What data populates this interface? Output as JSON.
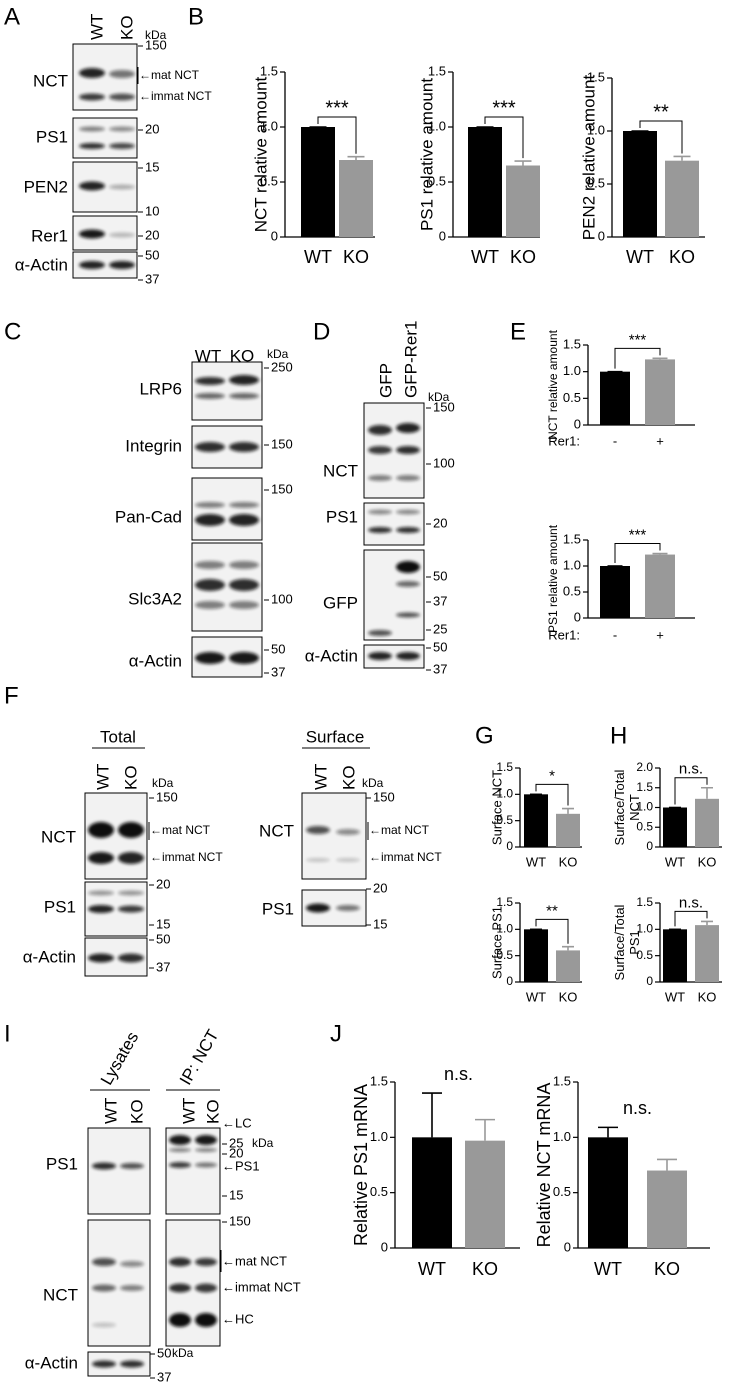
{
  "panel_A": {
    "label": "A",
    "lanes": [
      "WT",
      "KO"
    ],
    "unit": "kDa",
    "rows": [
      "NCT",
      "PS1",
      "PEN2",
      "Rer1",
      "α-Actin"
    ],
    "markers": [
      150,
      20,
      15,
      10,
      20,
      50,
      37
    ],
    "annotations": [
      "←mat NCT",
      "←immat NCT"
    ]
  },
  "panel_B": {
    "label": "B",
    "charts": [
      {
        "type": "bar",
        "ylabel": "NCT relative amount",
        "categories": [
          "WT",
          "KO"
        ],
        "values": [
          1,
          0.7
        ],
        "errors": [
          0,
          0.03
        ],
        "colors": [
          "#000000",
          "#999999"
        ],
        "ylim": [
          0,
          1.5
        ],
        "yticks": [
          0,
          0.5,
          {
            "value": 1,
            "label": "1.0"
          },
          1.5
        ],
        "significance": "***"
      },
      {
        "type": "bar",
        "ylabel": "PS1 relative amount",
        "categories": [
          "WT",
          "KO"
        ],
        "values": [
          1,
          0.65
        ],
        "errors": [
          0,
          0.04
        ],
        "colors": [
          "#000000",
          "#999999"
        ],
        "ylim": [
          0,
          1.5
        ],
        "yticks": [
          0,
          0.5,
          {
            "value": 1,
            "label": "1.0"
          },
          1.5
        ],
        "significance": "***"
      },
      {
        "type": "bar",
        "ylabel": "PEN2 relative amount",
        "categories": [
          "WT",
          "KO"
        ],
        "values": [
          1,
          0.72
        ],
        "errors": [
          0,
          0.04
        ],
        "colors": [
          "#000000",
          "#999999"
        ],
        "ylim": [
          0,
          1.5
        ],
        "yticks": [
          0,
          0.5,
          {
            "value": 1,
            "label": "1.0"
          },
          1.5
        ],
        "significance": "**"
      }
    ]
  },
  "panel_C": {
    "label": "C",
    "lanes": [
      "WT",
      "KO"
    ],
    "unit": "kDa",
    "rows": [
      "LRP6",
      "Integrin",
      "Pan-Cad",
      "Slc3A2",
      "α-Actin"
    ],
    "markers": [
      250,
      150,
      150,
      100,
      50,
      37
    ]
  },
  "panel_D": {
    "label": "D",
    "lanes": [
      "GFP",
      "GFP-Rer1"
    ],
    "unit": "kDa",
    "rows": [
      "NCT",
      "PS1",
      "GFP",
      "α-Actin"
    ],
    "markers": [
      150,
      100,
      20,
      50,
      37,
      25,
      50,
      37
    ]
  },
  "panel_E": {
    "label": "E",
    "charts": [
      {
        "type": "bar",
        "ylabel": "NCT relative amount",
        "xlabel": "Rer1:",
        "categories": [
          "-",
          "+"
        ],
        "values": [
          1,
          1.23
        ],
        "errors": [
          0,
          0.02
        ],
        "colors": [
          "#000000",
          "#999999"
        ],
        "ylim": [
          0,
          1.5
        ],
        "yticks": [
          0,
          0.5,
          {
            "value": 1,
            "label": "1.0"
          },
          1.5
        ],
        "significance": "***"
      },
      {
        "type": "bar",
        "ylabel": "PS1 relative amount",
        "xlabel": "Rer1:",
        "categories": [
          "-",
          "+"
        ],
        "values": [
          1,
          1.22
        ],
        "errors": [
          0,
          0.02
        ],
        "colors": [
          "#000000",
          "#999999"
        ],
        "ylim": [
          0,
          1.5
        ],
        "yticks": [
          0,
          0.5,
          {
            "value": 1,
            "label": "1.0"
          },
          1.5
        ],
        "significance": "***"
      }
    ]
  },
  "panel_F": {
    "label": "F",
    "total": {
      "title": "Total",
      "lanes": [
        "WT",
        "KO"
      ],
      "unit": "kDa",
      "rows": [
        "NCT",
        "PS1",
        "α-Actin"
      ],
      "markers": [
        150,
        20,
        15,
        50,
        37
      ],
      "annotations": [
        "←mat NCT",
        "←immat NCT"
      ]
    },
    "surface": {
      "title": "Surface",
      "lanes": [
        "WT",
        "KO"
      ],
      "unit": "kDa",
      "rows": [
        "NCT",
        "PS1"
      ],
      "markers": [
        150,
        20,
        15
      ],
      "annotations": [
        "←mat NCT",
        "←immat NCT"
      ]
    }
  },
  "panel_G": {
    "label": "G",
    "charts": [
      {
        "type": "bar",
        "ylabel": "Surface NCT",
        "categories": [
          "WT",
          "KO"
        ],
        "values": [
          1,
          0.63
        ],
        "errors": [
          0,
          0.1
        ],
        "colors": [
          "#000000",
          "#999999"
        ],
        "ylim": [
          0,
          1.5
        ],
        "yticks": [
          0,
          0.5,
          {
            "value": 1,
            "label": "1.0"
          },
          1.5
        ],
        "significance": "*"
      },
      {
        "type": "bar",
        "ylabel": "Surface PS1",
        "categories": [
          "WT",
          "KO"
        ],
        "values": [
          1,
          0.6
        ],
        "errors": [
          0,
          0.07
        ],
        "colors": [
          "#000000",
          "#999999"
        ],
        "ylim": [
          0,
          1.5
        ],
        "yticks": [
          0,
          0.5,
          {
            "value": 1,
            "label": "1.0"
          },
          1.5
        ],
        "significance": "**"
      }
    ]
  },
  "panel_H": {
    "label": "H",
    "charts": [
      {
        "type": "bar",
        "ylabel": [
          "Surface/Total",
          "NCT"
        ],
        "categories": [
          "WT",
          "KO"
        ],
        "values": [
          1,
          1.22
        ],
        "errors": [
          0,
          0.28
        ],
        "colors": [
          "#000000",
          "#999999"
        ],
        "ylim": [
          0,
          2
        ],
        "yticks": [
          0,
          0.5,
          {
            "value": 1,
            "label": "1.0"
          },
          1.5,
          {
            "value": 2,
            "label": "2.0"
          }
        ],
        "significance": "n.s."
      },
      {
        "type": "bar",
        "ylabel": [
          "Surface/Total",
          "PS1"
        ],
        "categories": [
          "WT",
          "KO"
        ],
        "values": [
          1,
          1.08
        ],
        "errors": [
          0,
          0.07
        ],
        "colors": [
          "#000000",
          "#999999"
        ],
        "ylim": [
          0,
          1.5
        ],
        "yticks": [
          0,
          0.5,
          {
            "value": 1,
            "label": "1.0"
          },
          1.5
        ],
        "significance": "n.s."
      }
    ]
  },
  "panel_I": {
    "label": "I",
    "groups": [
      "Lysates",
      "IP: NCT"
    ],
    "lanes": [
      "WT",
      "KO",
      "WT",
      "KO"
    ],
    "rows": [
      "PS1",
      "NCT",
      "α-Actin"
    ],
    "unit": "kDa",
    "markers": [
      25,
      20,
      15,
      150,
      50,
      37
    ],
    "annotations": [
      "←LC",
      "←PS1",
      "←mat NCT",
      "←immat NCT",
      "←HC"
    ]
  },
  "panel_J": {
    "label": "J",
    "charts": [
      {
        "type": "bar",
        "ylabel": "Relative PS1 mRNA",
        "categories": [
          "WT",
          "KO"
        ],
        "values": [
          1,
          0.97
        ],
        "errors": [
          0.4,
          0.19
        ],
        "colors": [
          "#000000",
          "#999999"
        ],
        "ylim": [
          0,
          1.5
        ],
        "yticks": [
          0,
          0.5,
          {
            "value": 1,
            "label": "1.0"
          },
          1.5
        ],
        "significance": "n.s."
      },
      {
        "type": "bar",
        "ylabel": "Relative NCT mRNA",
        "categories": [
          "WT",
          "KO"
        ],
        "values": [
          1,
          0.7
        ],
        "errors": [
          0.09,
          0.1
        ],
        "colors": [
          "#000000",
          "#999999"
        ],
        "ylim": [
          0,
          1.5
        ],
        "yticks": [
          0,
          0.5,
          {
            "value": 1,
            "label": "1.0"
          },
          1.5
        ],
        "significance": "n.s."
      }
    ]
  }
}
